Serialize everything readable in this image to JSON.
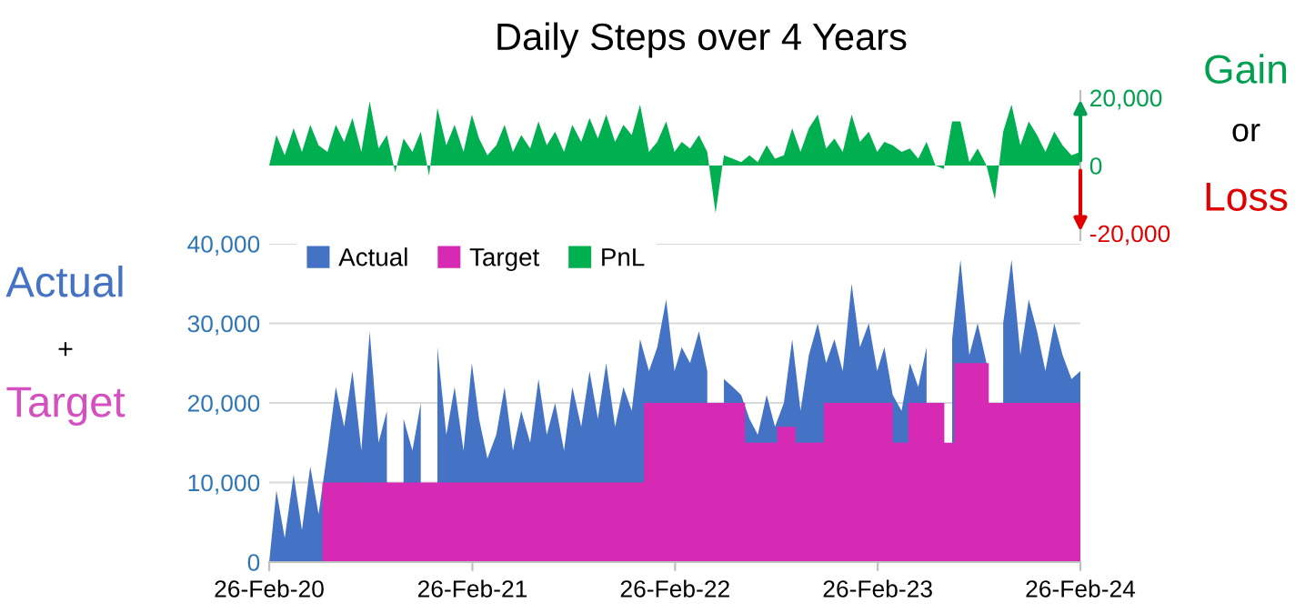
{
  "chart_data": [
    {
      "type": "area",
      "title": "Daily Steps over 4 Years",
      "x": [
        "2020-02-26",
        "2020-03-10",
        "2020-03-25",
        "2020-04-10",
        "2020-04-25",
        "2020-05-10",
        "2020-05-25",
        "2020-06-10",
        "2020-06-25",
        "2020-07-10",
        "2020-07-25",
        "2020-08-10",
        "2020-08-25",
        "2020-09-10",
        "2020-09-25",
        "2020-10-10",
        "2020-10-25",
        "2020-11-10",
        "2020-11-25",
        "2020-12-10",
        "2020-12-25",
        "2021-01-10",
        "2021-01-25",
        "2021-02-10",
        "2021-02-25",
        "2021-03-10",
        "2021-03-25",
        "2021-04-10",
        "2021-04-25",
        "2021-05-10",
        "2021-05-25",
        "2021-06-10",
        "2021-06-25",
        "2021-07-10",
        "2021-07-25",
        "2021-08-10",
        "2021-08-25",
        "2021-09-10",
        "2021-09-25",
        "2021-10-10",
        "2021-10-25",
        "2021-11-10",
        "2021-11-25",
        "2021-12-10",
        "2021-12-25",
        "2022-01-10",
        "2022-01-25",
        "2022-02-10",
        "2022-02-25",
        "2022-03-10",
        "2022-03-25",
        "2022-04-10",
        "2022-04-25",
        "2022-05-10",
        "2022-05-25",
        "2022-06-10",
        "2022-06-25",
        "2022-07-10",
        "2022-07-25",
        "2022-08-10",
        "2022-08-25",
        "2022-09-10",
        "2022-09-25",
        "2022-10-10",
        "2022-10-25",
        "2022-11-10",
        "2022-11-25",
        "2022-12-10",
        "2022-12-25",
        "2023-01-10",
        "2023-01-25",
        "2023-02-10",
        "2023-02-25",
        "2023-03-10",
        "2023-03-25",
        "2023-04-10",
        "2023-04-25",
        "2023-05-10",
        "2023-05-25",
        "2023-06-10",
        "2023-06-25",
        "2023-07-10",
        "2023-07-25",
        "2023-08-10",
        "2023-08-25",
        "2023-09-10",
        "2023-09-25",
        "2023-10-10",
        "2023-10-25",
        "2023-11-10",
        "2023-11-25",
        "2023-12-10",
        "2023-12-25",
        "2024-01-10",
        "2024-01-25",
        "2024-02-10",
        "2024-02-26"
      ],
      "series": [
        {
          "name": "PnL",
          "color": "#00b050",
          "values": [
            0,
            9000,
            3000,
            11000,
            4000,
            12000,
            6000,
            4000,
            12000,
            7000,
            14000,
            4000,
            19000,
            5000,
            9000,
            -2000,
            8000,
            4000,
            10000,
            -3000,
            17000,
            6000,
            12000,
            4000,
            15000,
            8000,
            3000,
            6000,
            12000,
            4000,
            9000,
            5000,
            13000,
            6000,
            10000,
            4000,
            12000,
            7000,
            14000,
            8000,
            15000,
            7000,
            12000,
            9000,
            18000,
            4000,
            7000,
            13000,
            4000,
            7000,
            5000,
            9000,
            4000,
            -14000,
            3000,
            2000,
            1000,
            3000,
            1000,
            6000,
            2000,
            3000,
            11000,
            4000,
            11000,
            15000,
            5000,
            8000,
            4000,
            15000,
            7000,
            10000,
            4000,
            7000,
            6000,
            4000,
            5000,
            2000,
            7000,
            0,
            -1000,
            13000,
            13000,
            1000,
            5000,
            0,
            -10000,
            10000,
            18000,
            6000,
            13000,
            9000,
            4000,
            10000,
            6000,
            3000,
            4000
          ]
        }
      ],
      "xlim": [
        "2020-02-26",
        "2024-02-26"
      ],
      "ylim": [
        -22000,
        22000
      ],
      "yticks": [
        {
          "value": 20000,
          "label": "20,000"
        },
        0,
        {
          "value": -20000,
          "label": "-20,000"
        }
      ],
      "tick_labels": "y",
      "grid": false,
      "annotations": [
        "Gain",
        "or",
        "Loss"
      ]
    },
    {
      "type": "area",
      "x": [
        "2020-02-26",
        "2020-03-10",
        "2020-03-25",
        "2020-04-10",
        "2020-04-25",
        "2020-05-10",
        "2020-05-25",
        "2020-06-10",
        "2020-06-25",
        "2020-07-10",
        "2020-07-25",
        "2020-08-10",
        "2020-08-25",
        "2020-09-10",
        "2020-09-25",
        "2020-10-10",
        "2020-10-25",
        "2020-11-10",
        "2020-11-25",
        "2020-12-10",
        "2020-12-25",
        "2021-01-10",
        "2021-01-25",
        "2021-02-10",
        "2021-02-25",
        "2021-03-10",
        "2021-03-25",
        "2021-04-10",
        "2021-04-25",
        "2021-05-10",
        "2021-05-25",
        "2021-06-10",
        "2021-06-25",
        "2021-07-10",
        "2021-07-25",
        "2021-08-10",
        "2021-08-25",
        "2021-09-10",
        "2021-09-25",
        "2021-10-10",
        "2021-10-25",
        "2021-11-10",
        "2021-11-25",
        "2021-12-10",
        "2021-12-25",
        "2022-01-10",
        "2022-01-25",
        "2022-02-10",
        "2022-02-25",
        "2022-03-10",
        "2022-03-25",
        "2022-04-10",
        "2022-04-25",
        "2022-05-10",
        "2022-05-25",
        "2022-06-10",
        "2022-06-25",
        "2022-07-10",
        "2022-07-25",
        "2022-08-10",
        "2022-08-25",
        "2022-09-10",
        "2022-09-25",
        "2022-10-10",
        "2022-10-25",
        "2022-11-10",
        "2022-11-25",
        "2022-12-10",
        "2022-12-25",
        "2023-01-10",
        "2023-01-25",
        "2023-02-10",
        "2023-02-25",
        "2023-03-10",
        "2023-03-25",
        "2023-04-10",
        "2023-04-25",
        "2023-05-10",
        "2023-05-25",
        "2023-06-10",
        "2023-06-25",
        "2023-07-10",
        "2023-07-25",
        "2023-08-10",
        "2023-08-25",
        "2023-09-10",
        "2023-09-25",
        "2023-10-10",
        "2023-10-25",
        "2023-11-10",
        "2023-11-25",
        "2023-12-10",
        "2023-12-25",
        "2024-01-10",
        "2024-01-25",
        "2024-02-10",
        "2024-02-26"
      ],
      "series": [
        {
          "name": "Actual",
          "color": "#4472c4",
          "values": [
            0,
            9000,
            3000,
            11000,
            4000,
            12000,
            6000,
            14000,
            22000,
            17000,
            24000,
            14000,
            29000,
            15000,
            19000,
            null,
            18000,
            14000,
            20000,
            null,
            27000,
            16000,
            22000,
            14000,
            25000,
            18000,
            13000,
            16000,
            22000,
            14000,
            19000,
            15000,
            23000,
            16000,
            20000,
            14000,
            22000,
            17000,
            24000,
            18000,
            25000,
            17000,
            22000,
            19000,
            28000,
            24000,
            27000,
            33000,
            24000,
            27000,
            25000,
            29000,
            24000,
            null,
            23000,
            22000,
            21000,
            18000,
            16000,
            21000,
            17000,
            20000,
            28000,
            19000,
            26000,
            30000,
            25000,
            28000,
            24000,
            35000,
            27000,
            30000,
            24000,
            27000,
            21000,
            19000,
            25000,
            22000,
            27000,
            null,
            null,
            28000,
            38000,
            26000,
            30000,
            25000,
            null,
            30000,
            38000,
            26000,
            33000,
            29000,
            24000,
            30000,
            26000,
            23000,
            24000
          ]
        },
        {
          "name": "Target",
          "color": "#d62ab4",
          "x": [
            "2020-06-01",
            "2020-06-01",
            "2022-01-01",
            "2022-01-01",
            "2022-07-02",
            "2022-07-02",
            "2022-08-29",
            "2022-08-29",
            "2022-10-01",
            "2022-10-01",
            "2022-11-21",
            "2022-11-21",
            "2023-03-25",
            "2023-03-25",
            "2023-04-22",
            "2023-04-22",
            "2023-06-26",
            "2023-06-26",
            "2023-07-14",
            "2023-07-14",
            "2023-09-14",
            "2023-09-14",
            "2024-02-26"
          ],
          "values": [
            0,
            10000,
            10000,
            20000,
            20000,
            15000,
            15000,
            17000,
            17000,
            15000,
            15000,
            20000,
            20000,
            15000,
            15000,
            20000,
            20000,
            15000,
            15000,
            25000,
            25000,
            20000,
            20000
          ]
        }
      ],
      "xlim": [
        "2020-02-26",
        "2024-02-26"
      ],
      "xticks": [
        {
          "value": "2020-02-26",
          "label": "26-Feb-20"
        },
        {
          "value": "2021-02-26",
          "label": "26-Feb-21"
        },
        {
          "value": "2022-02-26",
          "label": "26-Feb-22"
        },
        {
          "value": "2023-02-26",
          "label": "26-Feb-23"
        },
        {
          "value": "2024-02-26",
          "label": "26-Feb-24"
        }
      ],
      "ylim": [
        0,
        40000
      ],
      "yticks": [
        0,
        {
          "value": 10000,
          "label": "10,000"
        },
        {
          "value": 20000,
          "label": "20,000"
        },
        {
          "value": 30000,
          "label": "30,000"
        },
        {
          "value": 40000,
          "label": "40,000"
        }
      ],
      "grid": "y",
      "legend": "top left",
      "annotations": [
        "Actual",
        "+",
        "Target"
      ]
    }
  ]
}
